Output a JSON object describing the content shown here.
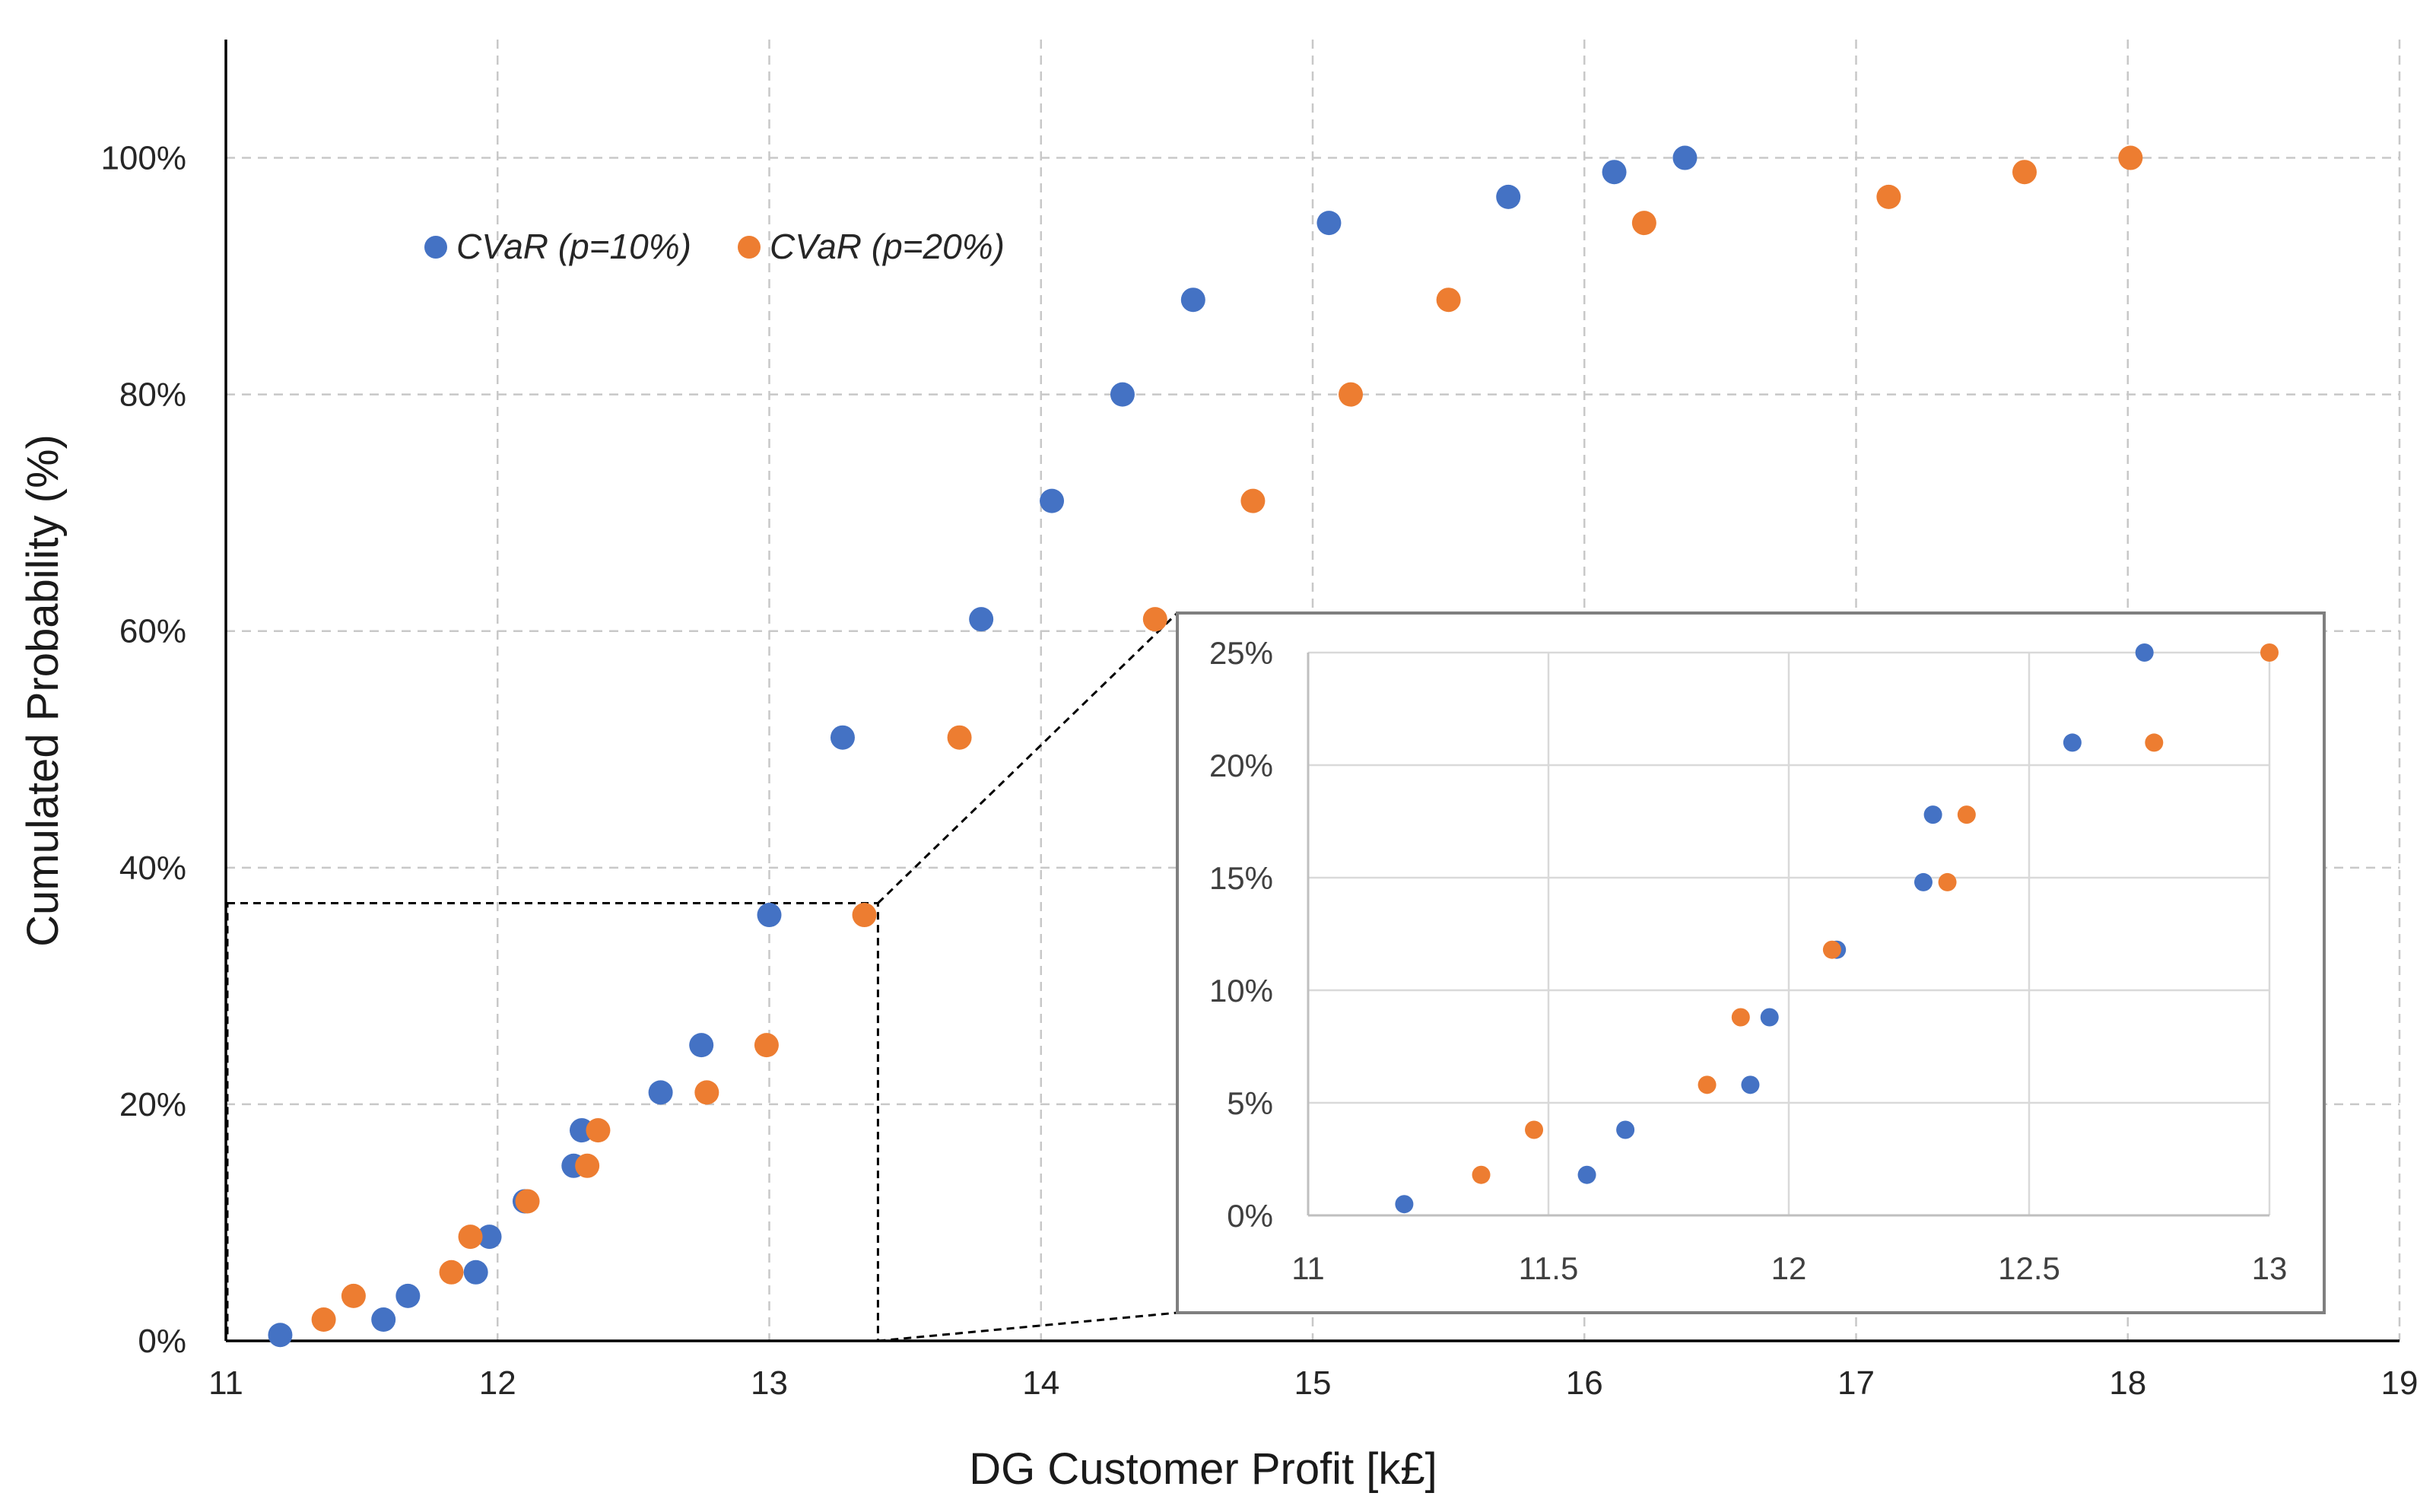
{
  "chart_data": [
    {
      "id": "main",
      "type": "scatter",
      "title": "",
      "xlabel": "DG Customer Profit [k£]",
      "ylabel": "Cumulated Probability (%)",
      "xlim": [
        11,
        19
      ],
      "ylim": [
        0,
        1.1
      ],
      "xticks": [
        11,
        12,
        13,
        14,
        15,
        16,
        17,
        18,
        19
      ],
      "xtick_labels": [
        "11",
        "12",
        "13",
        "14",
        "15",
        "16",
        "17",
        "18",
        "19"
      ],
      "yticks": [
        0,
        0.2,
        0.4,
        0.6,
        0.8,
        1.0
      ],
      "ytick_labels": [
        "0%",
        "20%",
        "40%",
        "60%",
        "80%",
        "100%"
      ],
      "grid": true,
      "legend_position": "top-left",
      "series": [
        {
          "name": "CVaR (p=10%)",
          "color": "#4472C4",
          "x": [
            11.2,
            11.58,
            11.67,
            11.92,
            11.97,
            12.1,
            12.28,
            12.31,
            12.6,
            12.75,
            13.0,
            13.27,
            13.78,
            14.04,
            14.3,
            14.56,
            15.06,
            15.72,
            16.11,
            16.37
          ],
          "y": [
            0.005,
            0.018,
            0.038,
            0.058,
            0.088,
            0.118,
            0.148,
            0.178,
            0.21,
            0.25,
            0.36,
            0.51,
            0.61,
            0.71,
            0.8,
            0.88,
            0.945,
            0.967,
            0.988,
            1.0
          ]
        },
        {
          "name": "CVaR (p=20%)",
          "color": "#ED7D31",
          "x": [
            11.36,
            11.47,
            11.83,
            11.9,
            12.11,
            12.33,
            12.37,
            12.77,
            12.99,
            13.35,
            13.7,
            14.42,
            14.78,
            15.14,
            15.5,
            16.22,
            17.12,
            17.62,
            18.01
          ],
          "y": [
            0.018,
            0.038,
            0.058,
            0.088,
            0.118,
            0.148,
            0.178,
            0.21,
            0.25,
            0.36,
            0.51,
            0.61,
            0.71,
            0.8,
            0.88,
            0.945,
            0.967,
            0.988,
            1.0
          ]
        }
      ]
    },
    {
      "id": "inset",
      "type": "scatter",
      "title": "",
      "xlabel": "",
      "ylabel": "",
      "xlim": [
        11,
        13
      ],
      "ylim": [
        0,
        0.25
      ],
      "xticks": [
        11,
        11.5,
        12,
        12.5,
        13
      ],
      "xtick_labels": [
        "11",
        "11.5",
        "12",
        "12.5",
        "13"
      ],
      "yticks": [
        0,
        0.05,
        0.1,
        0.15,
        0.2,
        0.25
      ],
      "ytick_labels": [
        "0%",
        "5%",
        "10%",
        "15%",
        "20%",
        "25%"
      ],
      "grid": true,
      "series": [
        {
          "name": "CVaR (p=10%)",
          "color": "#4472C4",
          "x": [
            11.2,
            11.58,
            11.66,
            11.92,
            11.96,
            12.1,
            12.28,
            12.3,
            12.59,
            12.74
          ],
          "y": [
            0.005,
            0.018,
            0.038,
            0.058,
            0.088,
            0.118,
            0.148,
            0.178,
            0.21,
            0.25
          ]
        },
        {
          "name": "CVaR (p=20%)",
          "color": "#ED7D31",
          "x": [
            11.36,
            11.47,
            11.83,
            11.9,
            12.09,
            12.33,
            12.37,
            12.76,
            13.0
          ],
          "y": [
            0.018,
            0.038,
            0.058,
            0.088,
            0.118,
            0.148,
            0.178,
            0.21,
            0.25
          ]
        }
      ]
    }
  ],
  "zoom_box": {
    "x_range": [
      11,
      13.4
    ],
    "y_range": [
      0,
      0.37
    ]
  }
}
